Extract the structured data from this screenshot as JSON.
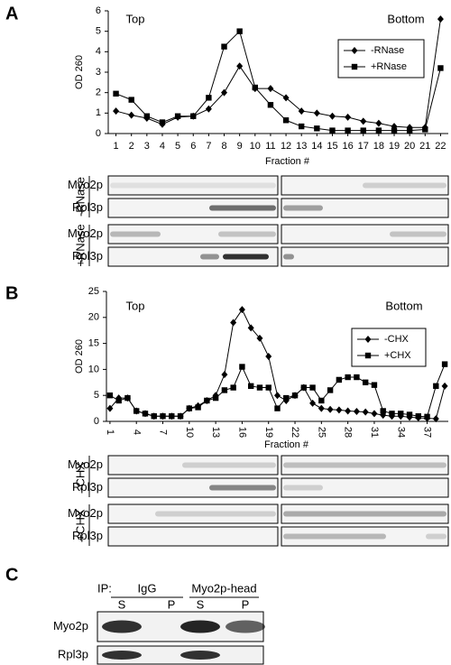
{
  "chart_data": [
    {
      "type": "line",
      "y_label": "OD 260",
      "x_label": "Fraction #",
      "annotations": [
        "Top",
        "Bottom"
      ],
      "x": [
        1,
        2,
        3,
        4,
        5,
        6,
        7,
        8,
        9,
        10,
        11,
        12,
        13,
        14,
        15,
        16,
        17,
        18,
        19,
        20,
        21,
        22
      ],
      "xlim": [
        0.5,
        22.5
      ],
      "xticks": [
        1,
        2,
        3,
        4,
        5,
        6,
        7,
        8,
        9,
        10,
        11,
        12,
        13,
        14,
        15,
        16,
        17,
        18,
        19,
        20,
        21,
        22
      ],
      "ylim": [
        0,
        6
      ],
      "yticks": [
        0,
        1,
        2,
        3,
        4,
        5,
        6
      ],
      "grid": false,
      "legend": "right",
      "series": [
        {
          "name": "-RNase",
          "color": "#000000",
          "marker": "diamond",
          "values": [
            1.1,
            0.9,
            0.75,
            0.45,
            0.8,
            0.85,
            1.2,
            2.0,
            3.3,
            2.2,
            2.2,
            1.75,
            1.1,
            1.0,
            0.85,
            0.8,
            0.6,
            0.5,
            0.35,
            0.3,
            0.3,
            5.6
          ]
        },
        {
          "name": "+RNase",
          "color": "#000000",
          "marker": "square",
          "values": [
            1.95,
            1.65,
            0.85,
            0.55,
            0.85,
            0.85,
            1.75,
            4.25,
            5.0,
            2.25,
            1.4,
            0.65,
            0.35,
            0.25,
            0.15,
            0.15,
            0.15,
            0.15,
            0.15,
            0.15,
            0.2,
            3.2
          ]
        }
      ]
    },
    {
      "type": "line",
      "y_label": "OD 260",
      "x_label": "Fraction #",
      "annotations": [
        "Top",
        "Bottom"
      ],
      "x": [
        1,
        2,
        3,
        4,
        5,
        6,
        7,
        8,
        9,
        10,
        11,
        12,
        13,
        14,
        15,
        16,
        17,
        18,
        19,
        20,
        21,
        22,
        23,
        24,
        25,
        26,
        27,
        28,
        29,
        30,
        31,
        32,
        33,
        34,
        35,
        36,
        37,
        38,
        39
      ],
      "xlim": [
        0.6,
        39.4
      ],
      "xticks": [
        1,
        4,
        7,
        10,
        13,
        16,
        19,
        22,
        25,
        28,
        31,
        34,
        37
      ],
      "ylim": [
        0,
        25
      ],
      "yticks": [
        0,
        5,
        10,
        15,
        20,
        25
      ],
      "grid": false,
      "legend": "right",
      "series": [
        {
          "name": "-CHX",
          "color": "#000000",
          "marker": "diamond",
          "values": [
            2.5,
            4.5,
            4.5,
            2,
            1.5,
            1,
            1,
            1,
            1,
            2.5,
            3,
            4,
            5,
            9,
            19,
            21.5,
            18,
            16,
            12.5,
            5,
            4,
            5,
            6.5,
            3.5,
            2.5,
            2.3,
            2.2,
            2,
            1.9,
            1.8,
            1.5,
            1.2,
            1,
            1,
            0.8,
            0.7,
            0.6,
            0.5,
            6.8
          ]
        },
        {
          "name": "+CHX",
          "color": "#000000",
          "marker": "square",
          "values": [
            5,
            4,
            4.5,
            2,
            1.5,
            1,
            1,
            1,
            1,
            2.5,
            2.7,
            4,
            4.5,
            6,
            6.5,
            10.5,
            6.8,
            6.5,
            6.5,
            2.5,
            4.5,
            5,
            6.5,
            6.5,
            4,
            6,
            8,
            8.5,
            8.5,
            7.5,
            7,
            2,
            1.5,
            1.5,
            1.3,
            1,
            0.9,
            6.8,
            11
          ]
        }
      ]
    }
  ],
  "panel_labels": [
    "A",
    "B",
    "C"
  ],
  "blots_a": {
    "groups": [
      {
        "label": "-RNase",
        "rows": [
          "Myo2p",
          "Rpl3p"
        ]
      },
      {
        "label": "+RNase",
        "rows": [
          "Myo2p",
          "Rpl3p"
        ]
      }
    ]
  },
  "blots_b": {
    "groups": [
      {
        "label": "-CHX",
        "rows": [
          "Myo2p",
          "Rpl3p"
        ]
      },
      {
        "label": "+CHX",
        "rows": [
          "Myo2p",
          "Rpl3p"
        ]
      }
    ]
  },
  "panel_c": {
    "ip_label": "IP:",
    "columns": [
      {
        "label": "IgG",
        "lanes": [
          "S",
          "P"
        ]
      },
      {
        "label": "Myo2p-head",
        "lanes": [
          "S",
          "P"
        ]
      }
    ],
    "rows": [
      "Myo2p",
      "Rpl3p"
    ]
  }
}
